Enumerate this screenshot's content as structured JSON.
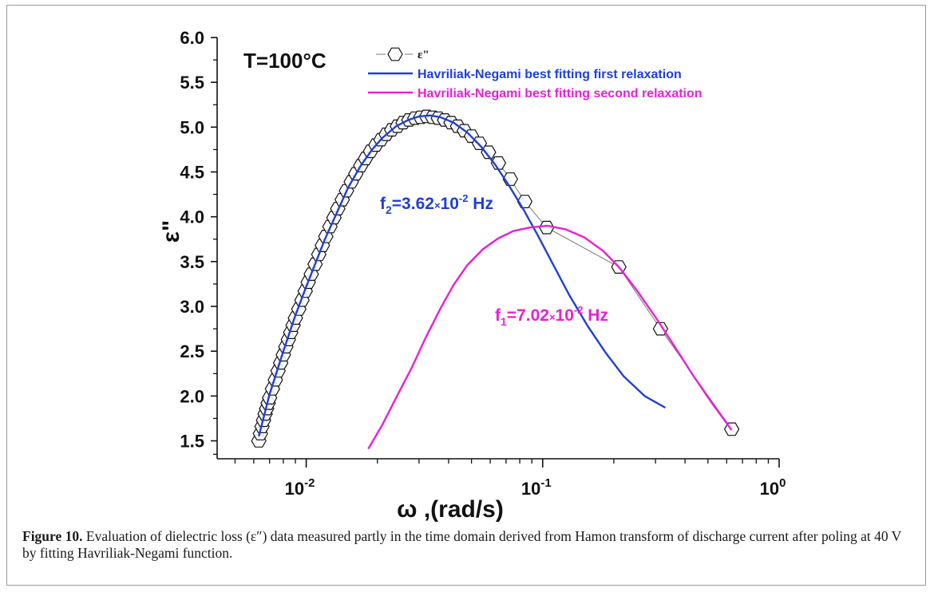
{
  "caption": {
    "label": "Figure 10.",
    "text": " Evaluation of dielectric loss (ε″) data measured partly in the time domain derived from Hamon transform of discharge current after poling at 40 V by fitting Havriliak-Negami function."
  },
  "chart_data": {
    "type": "line",
    "title": "",
    "xlabel": "ω ,(rad/s)",
    "ylabel": "ε\"",
    "x_scale": "log",
    "xlim": [
      0.0042,
      1.0
    ],
    "ylim": [
      1.3,
      6.0
    ],
    "x_ticks": [
      {
        "value": 0.01,
        "base": "10",
        "exp": "-2"
      },
      {
        "value": 0.1,
        "base": "10",
        "exp": "-1"
      },
      {
        "value": 1.0,
        "base": "10",
        "exp": "0"
      }
    ],
    "y_ticks": [
      "1.5",
      "2.0",
      "2.5",
      "3.0",
      "3.5",
      "4.0",
      "4.5",
      "5.0",
      "5.5",
      "6.0"
    ],
    "grid": false,
    "legend_position": "top",
    "annotations": {
      "temperature": "T=100°C",
      "f2": {
        "prefix": "f",
        "sub": "2",
        "value": "=3.62",
        "times": "×",
        "base": "10",
        "exp": "-2",
        "unit": " Hz",
        "color": "#1f3fd6"
      },
      "f1": {
        "prefix": "f",
        "sub": "1",
        "value": "=7.02",
        "times": "×",
        "base": "10",
        "exp": "-2",
        "unit": " Hz",
        "color": "#e91fd8"
      }
    },
    "series": [
      {
        "name": "ε\"",
        "legend_label": "ε\"",
        "marker": "hexagon",
        "color": "#000000",
        "points": [
          [
            0.0063,
            1.5
          ],
          [
            0.0064,
            1.58
          ],
          [
            0.0065,
            1.66
          ],
          [
            0.0066,
            1.73
          ],
          [
            0.0067,
            1.8
          ],
          [
            0.0068,
            1.86
          ],
          [
            0.0069,
            1.92
          ],
          [
            0.007,
            1.98
          ],
          [
            0.0072,
            2.08
          ],
          [
            0.0074,
            2.18
          ],
          [
            0.0076,
            2.28
          ],
          [
            0.0078,
            2.37
          ],
          [
            0.008,
            2.46
          ],
          [
            0.0082,
            2.55
          ],
          [
            0.0084,
            2.63
          ],
          [
            0.0086,
            2.71
          ],
          [
            0.0088,
            2.79
          ],
          [
            0.009,
            2.87
          ],
          [
            0.0093,
            2.97
          ],
          [
            0.0096,
            3.07
          ],
          [
            0.0099,
            3.17
          ],
          [
            0.0102,
            3.27
          ],
          [
            0.0105,
            3.36
          ],
          [
            0.0109,
            3.47
          ],
          [
            0.0113,
            3.58
          ],
          [
            0.0117,
            3.68
          ],
          [
            0.0121,
            3.78
          ],
          [
            0.0126,
            3.89
          ],
          [
            0.0131,
            3.99
          ],
          [
            0.0136,
            4.09
          ],
          [
            0.0142,
            4.19
          ],
          [
            0.0148,
            4.29
          ],
          [
            0.0155,
            4.39
          ],
          [
            0.0162,
            4.48
          ],
          [
            0.017,
            4.57
          ],
          [
            0.0178,
            4.65
          ],
          [
            0.0187,
            4.73
          ],
          [
            0.0197,
            4.8
          ],
          [
            0.0207,
            4.86
          ],
          [
            0.0218,
            4.92
          ],
          [
            0.023,
            4.97
          ],
          [
            0.0243,
            5.01
          ],
          [
            0.0257,
            5.05
          ],
          [
            0.0272,
            5.08
          ],
          [
            0.0288,
            5.1
          ],
          [
            0.0305,
            5.11
          ],
          [
            0.0323,
            5.12
          ],
          [
            0.0342,
            5.11
          ],
          [
            0.0362,
            5.1
          ],
          [
            0.0385,
            5.08
          ],
          [
            0.041,
            5.05
          ],
          [
            0.0437,
            5.01
          ],
          [
            0.0466,
            4.96
          ],
          [
            0.05,
            4.9
          ],
          [
            0.054,
            4.82
          ],
          [
            0.059,
            4.72
          ],
          [
            0.065,
            4.6
          ],
          [
            0.073,
            4.42
          ],
          [
            0.084,
            4.17
          ],
          [
            0.104,
            3.88
          ],
          [
            0.21,
            3.44
          ],
          [
            0.315,
            2.75
          ],
          [
            0.63,
            1.63
          ]
        ]
      },
      {
        "name": "Havriliak-Negami best fitting first relaxation",
        "legend_label": "Havriliak-Negami best fitting first relaxation",
        "color": "#1f3fd6",
        "points": [
          [
            0.0063,
            1.55
          ],
          [
            0.007,
            2.02
          ],
          [
            0.008,
            2.5
          ],
          [
            0.009,
            2.9
          ],
          [
            0.01,
            3.22
          ],
          [
            0.011,
            3.5
          ],
          [
            0.012,
            3.75
          ],
          [
            0.0135,
            4.05
          ],
          [
            0.015,
            4.32
          ],
          [
            0.017,
            4.57
          ],
          [
            0.019,
            4.75
          ],
          [
            0.021,
            4.88
          ],
          [
            0.024,
            5.01
          ],
          [
            0.027,
            5.08
          ],
          [
            0.03,
            5.12
          ],
          [
            0.0335,
            5.13
          ],
          [
            0.037,
            5.11
          ],
          [
            0.042,
            5.05
          ],
          [
            0.048,
            4.94
          ],
          [
            0.055,
            4.78
          ],
          [
            0.063,
            4.58
          ],
          [
            0.072,
            4.35
          ],
          [
            0.083,
            4.08
          ],
          [
            0.095,
            3.8
          ],
          [
            0.11,
            3.48
          ],
          [
            0.13,
            3.12
          ],
          [
            0.155,
            2.78
          ],
          [
            0.185,
            2.48
          ],
          [
            0.22,
            2.22
          ],
          [
            0.27,
            2.0
          ],
          [
            0.33,
            1.87
          ]
        ]
      },
      {
        "name": "Havriliak-Negami best fitting second relaxation",
        "legend_label": "Havriliak-Negami best fitting second relaxation",
        "color": "#e91fd8",
        "points": [
          [
            0.0183,
            1.41
          ],
          [
            0.021,
            1.68
          ],
          [
            0.024,
            1.98
          ],
          [
            0.028,
            2.32
          ],
          [
            0.032,
            2.65
          ],
          [
            0.037,
            2.98
          ],
          [
            0.042,
            3.24
          ],
          [
            0.048,
            3.46
          ],
          [
            0.056,
            3.64
          ],
          [
            0.065,
            3.76
          ],
          [
            0.075,
            3.84
          ],
          [
            0.088,
            3.88
          ],
          [
            0.105,
            3.9
          ],
          [
            0.125,
            3.86
          ],
          [
            0.15,
            3.77
          ],
          [
            0.18,
            3.62
          ],
          [
            0.21,
            3.44
          ],
          [
            0.25,
            3.18
          ],
          [
            0.3,
            2.88
          ],
          [
            0.36,
            2.56
          ],
          [
            0.43,
            2.24
          ],
          [
            0.52,
            1.92
          ],
          [
            0.63,
            1.62
          ]
        ]
      }
    ]
  }
}
